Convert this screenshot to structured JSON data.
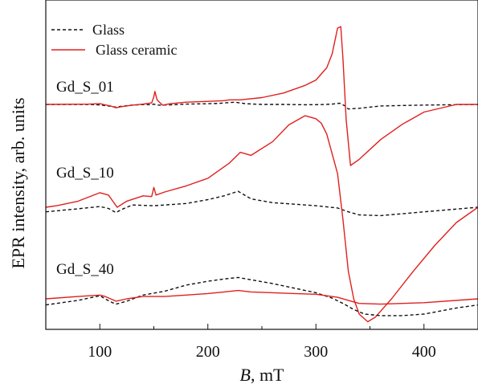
{
  "chart_data": {
    "type": "line",
    "xlabel_italic": "B",
    "xlabel_rest": ", mT",
    "ylabel": "EPR intensity, arb. units",
    "xlim": [
      50,
      450
    ],
    "xticks": [
      100,
      200,
      300,
      400
    ],
    "y_tick_labels_shown": false,
    "legend": [
      {
        "label": "Glass",
        "style": "dashed",
        "color": "#111111"
      },
      {
        "label": "Glass ceramic",
        "style": "solid",
        "color": "#e0201f"
      }
    ],
    "sample_labels": [
      "Gd_S_01",
      "Gd_S_10",
      "Gd_S_40"
    ],
    "colors": {
      "glass": "#111111",
      "glass_ceramic": "#e0201f",
      "axis": "#111111"
    },
    "series": [
      {
        "sample": "Gd_S_01",
        "type": "glass",
        "x": [
          50,
          90,
          100,
          110,
          115,
          120,
          130,
          140,
          148,
          150,
          152,
          155,
          165,
          180,
          200,
          210,
          225,
          235,
          250,
          270,
          290,
          305,
          315,
          322,
          327,
          330,
          340,
          360,
          400,
          450
        ],
        "y": [
          0.0,
          0.0,
          -0.03,
          -0.12,
          -0.18,
          -0.12,
          -0.04,
          -0.01,
          -0.02,
          0.02,
          -0.02,
          -0.05,
          -0.03,
          0.02,
          0.05,
          0.07,
          0.15,
          0.05,
          0.0,
          0.0,
          -0.02,
          -0.01,
          0.02,
          0.08,
          -0.1,
          -0.3,
          -0.25,
          -0.1,
          -0.04,
          0.0
        ]
      },
      {
        "sample": "Gd_S_01",
        "type": "glass_ceramic",
        "x": [
          50,
          90,
          100,
          110,
          115,
          120,
          130,
          140,
          148,
          150,
          151,
          153,
          158,
          165,
          180,
          200,
          215,
          220,
          230,
          250,
          270,
          290,
          300,
          310,
          315,
          320,
          323,
          325,
          328,
          332,
          340,
          360,
          380,
          400,
          430,
          450
        ],
        "y": [
          0.0,
          0.02,
          0.05,
          -0.1,
          -0.22,
          -0.15,
          -0.05,
          0.02,
          0.1,
          0.5,
          0.85,
          0.3,
          -0.05,
          0.05,
          0.15,
          0.2,
          0.25,
          0.3,
          0.3,
          0.45,
          0.75,
          1.25,
          1.6,
          2.4,
          3.3,
          5.0,
          5.1,
          3.0,
          -1.0,
          -4.0,
          -3.6,
          -2.3,
          -1.3,
          -0.5,
          0.0,
          0.0
        ]
      },
      {
        "sample": "Gd_S_10",
        "type": "glass",
        "x": [
          50,
          80,
          100,
          108,
          115,
          120,
          130,
          150,
          180,
          200,
          215,
          228,
          240,
          260,
          280,
          300,
          320,
          330,
          340,
          360,
          400,
          450
        ],
        "y": [
          -0.3,
          -0.1,
          0.05,
          -0.08,
          -0.35,
          -0.15,
          0.15,
          0.1,
          0.25,
          0.5,
          0.75,
          1.05,
          0.55,
          0.3,
          0.2,
          0.1,
          -0.05,
          -0.3,
          -0.5,
          -0.55,
          -0.3,
          0.0
        ]
      },
      {
        "sample": "Gd_S_10",
        "type": "glass_ceramic",
        "x": [
          50,
          60,
          80,
          100,
          108,
          112,
          116,
          125,
          140,
          148,
          150,
          152,
          160,
          180,
          200,
          220,
          230,
          240,
          260,
          275,
          290,
          300,
          305,
          310,
          320,
          325,
          330,
          335,
          340,
          348,
          355,
          370,
          390,
          410,
          430,
          450
        ],
        "y": [
          0.0,
          0.1,
          0.4,
          0.95,
          0.8,
          0.4,
          0.0,
          0.4,
          0.75,
          0.7,
          1.3,
          0.8,
          1.0,
          1.4,
          1.9,
          2.9,
          3.6,
          3.4,
          4.3,
          5.4,
          6.0,
          5.8,
          5.5,
          4.8,
          2.2,
          -0.8,
          -4.2,
          -6.0,
          -7.0,
          -7.5,
          -7.2,
          -6.0,
          -4.2,
          -2.5,
          -1.0,
          0.0
        ]
      },
      {
        "sample": "Gd_S_40",
        "type": "glass",
        "x": [
          50,
          80,
          100,
          105,
          110,
          115,
          125,
          140,
          160,
          180,
          200,
          215,
          228,
          240,
          260,
          280,
          300,
          315,
          325,
          335,
          345,
          360,
          380,
          400,
          430,
          450
        ],
        "y": [
          -0.4,
          -0.1,
          0.2,
          0.0,
          -0.2,
          -0.35,
          -0.15,
          0.25,
          0.5,
          0.9,
          1.15,
          1.3,
          1.4,
          1.25,
          1.0,
          0.7,
          0.4,
          0.05,
          -0.3,
          -0.7,
          -1.0,
          -1.1,
          -1.1,
          -1.0,
          -0.6,
          -0.4
        ]
      },
      {
        "sample": "Gd_S_40",
        "type": "glass_ceramic",
        "x": [
          50,
          80,
          100,
          105,
          110,
          115,
          125,
          140,
          160,
          180,
          200,
          215,
          228,
          240,
          260,
          280,
          300,
          320,
          330,
          340,
          360,
          400,
          450
        ],
        "y": [
          0.0,
          0.15,
          0.25,
          0.15,
          0.0,
          -0.15,
          0.0,
          0.15,
          0.15,
          0.25,
          0.35,
          0.45,
          0.55,
          0.45,
          0.4,
          0.35,
          0.3,
          0.1,
          -0.1,
          -0.3,
          -0.35,
          -0.25,
          0.0
        ]
      }
    ]
  }
}
